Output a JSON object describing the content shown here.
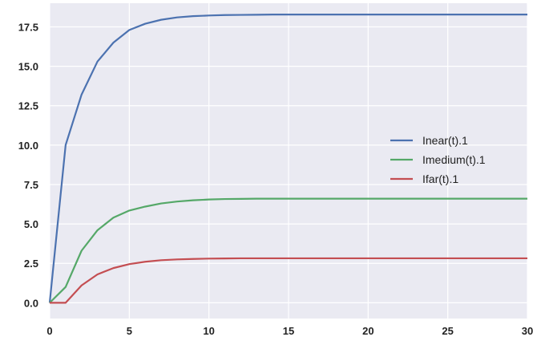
{
  "chart_data": {
    "type": "line",
    "title": "",
    "xlabel": "",
    "ylabel": "",
    "xlim": [
      0,
      30
    ],
    "ylim": [
      -1.0,
      19.0
    ],
    "x_ticks": [
      0,
      5,
      10,
      15,
      20,
      25,
      30
    ],
    "x_tick_labels": [
      "0",
      "5",
      "10",
      "15",
      "20",
      "25",
      "30"
    ],
    "y_ticks": [
      0.0,
      2.5,
      5.0,
      7.5,
      10.0,
      12.5,
      15.0,
      17.5
    ],
    "y_tick_labels": [
      "0.0",
      "2.5",
      "5.0",
      "7.5",
      "10.0",
      "12.5",
      "15.0",
      "17.5"
    ],
    "grid": true,
    "background": "#eaeaf2",
    "legend_position": "center-right",
    "x": [
      0,
      1,
      2,
      3,
      4,
      5,
      6,
      7,
      8,
      9,
      10,
      11,
      12,
      13,
      14,
      15,
      16,
      17,
      18,
      19,
      20,
      21,
      22,
      23,
      24,
      25,
      26,
      27,
      28,
      29,
      30
    ],
    "series": [
      {
        "name": "Inear(t).1",
        "color": "#4c72b0",
        "values": [
          0.0,
          10.0,
          13.2,
          15.3,
          16.5,
          17.3,
          17.7,
          17.95,
          18.1,
          18.18,
          18.22,
          18.25,
          18.26,
          18.27,
          18.28,
          18.28,
          18.28,
          18.28,
          18.28,
          18.28,
          18.28,
          18.28,
          18.28,
          18.28,
          18.28,
          18.28,
          18.28,
          18.28,
          18.28,
          18.28,
          18.28
        ]
      },
      {
        "name": "Imedium(t).1",
        "color": "#55a868",
        "values": [
          0.0,
          1.0,
          3.3,
          4.6,
          5.4,
          5.85,
          6.1,
          6.3,
          6.42,
          6.5,
          6.55,
          6.58,
          6.59,
          6.6,
          6.6,
          6.6,
          6.6,
          6.6,
          6.6,
          6.6,
          6.6,
          6.6,
          6.6,
          6.6,
          6.6,
          6.6,
          6.6,
          6.6,
          6.6,
          6.6,
          6.6
        ]
      },
      {
        "name": "Ifar(t).1",
        "color": "#c44e52",
        "values": [
          0.0,
          0.0,
          1.1,
          1.8,
          2.2,
          2.45,
          2.6,
          2.7,
          2.75,
          2.78,
          2.8,
          2.81,
          2.82,
          2.82,
          2.82,
          2.82,
          2.82,
          2.82,
          2.82,
          2.82,
          2.82,
          2.82,
          2.82,
          2.82,
          2.82,
          2.82,
          2.82,
          2.82,
          2.82,
          2.82,
          2.82
        ]
      }
    ]
  }
}
